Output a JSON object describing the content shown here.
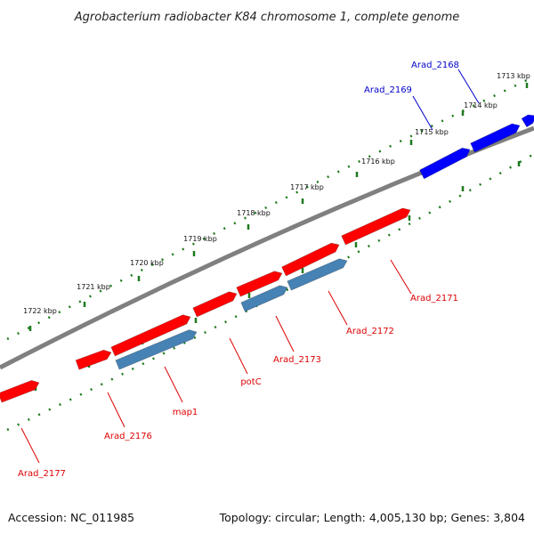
{
  "title": "Agrobacterium radiobacter K84 chromosome 1, complete genome",
  "footer": {
    "accession": "Accession: NC_011985",
    "summary": "Topology: circular; Length: 4,005,130 bp; Genes: 3,804"
  },
  "colors": {
    "backbone": "#808080",
    "tick": "#1e7a1e",
    "forward_gene": "#ff0000",
    "reverse_gene_red": "#ff0000",
    "reverse_gene_blue": "#4682b4",
    "highlight_gene": "#0000ff",
    "label_red": "#dd0000",
    "label_blue": "#0000cc"
  },
  "ticks": [
    "1713 kbp",
    "1714 kbp",
    "1715 kbp",
    "1716 kbp",
    "1717 kbp",
    "1718 kbp",
    "1719 kbp",
    "1720 kbp",
    "1721 kbp",
    "1722 kbp"
  ],
  "genes": [
    {
      "name": "Arad_2168",
      "color": "highlight_gene"
    },
    {
      "name": "Arad_2169",
      "color": "highlight_gene"
    },
    {
      "name": "Arad_2171",
      "color": "forward_gene"
    },
    {
      "name": "Arad_2172",
      "color": "forward_gene"
    },
    {
      "name": "Arad_2173",
      "color": "reverse_gene_blue"
    },
    {
      "name": "potC",
      "color": "forward_gene"
    },
    {
      "name": "map1",
      "color": "reverse_gene_blue"
    },
    {
      "name": "Arad_2176",
      "color": "forward_gene"
    },
    {
      "name": "Arad_2177",
      "color": "forward_gene"
    }
  ]
}
